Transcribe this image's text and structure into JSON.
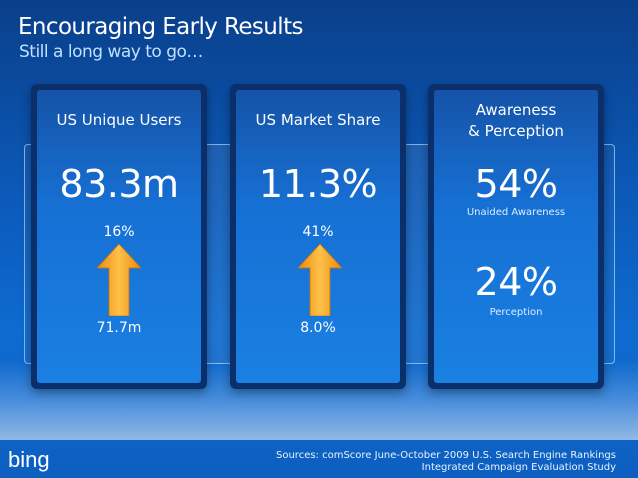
{
  "slide": {
    "title": "Encouraging Early Results",
    "subtitle": "Still a long way to go…"
  },
  "cards": [
    {
      "heading": "US Unique Users",
      "value": "83.3m",
      "growth": "16%",
      "baseline": "71.7m",
      "arrow_icon": "arrow-up-icon"
    },
    {
      "heading": "US Market Share",
      "value": "11.3%",
      "growth": "41%",
      "baseline": "8.0%",
      "arrow_icon": "arrow-up-icon"
    },
    {
      "heading_line1": "Awareness",
      "heading_line2": "& Perception",
      "metric1_value": "54%",
      "metric1_label": "Unaided Awareness",
      "metric2_value": "24%",
      "metric2_label": "Perception"
    }
  ],
  "footer": {
    "logo_text": "bing",
    "sources_line1": "Sources: comScore June-October 2009 U.S. Search Engine Rankings",
    "sources_line2": "Integrated Campaign Evaluation Study"
  },
  "colors": {
    "arrow": "#f5a01a",
    "background": "#0b59b8",
    "card_border": "#0a2f6a"
  }
}
